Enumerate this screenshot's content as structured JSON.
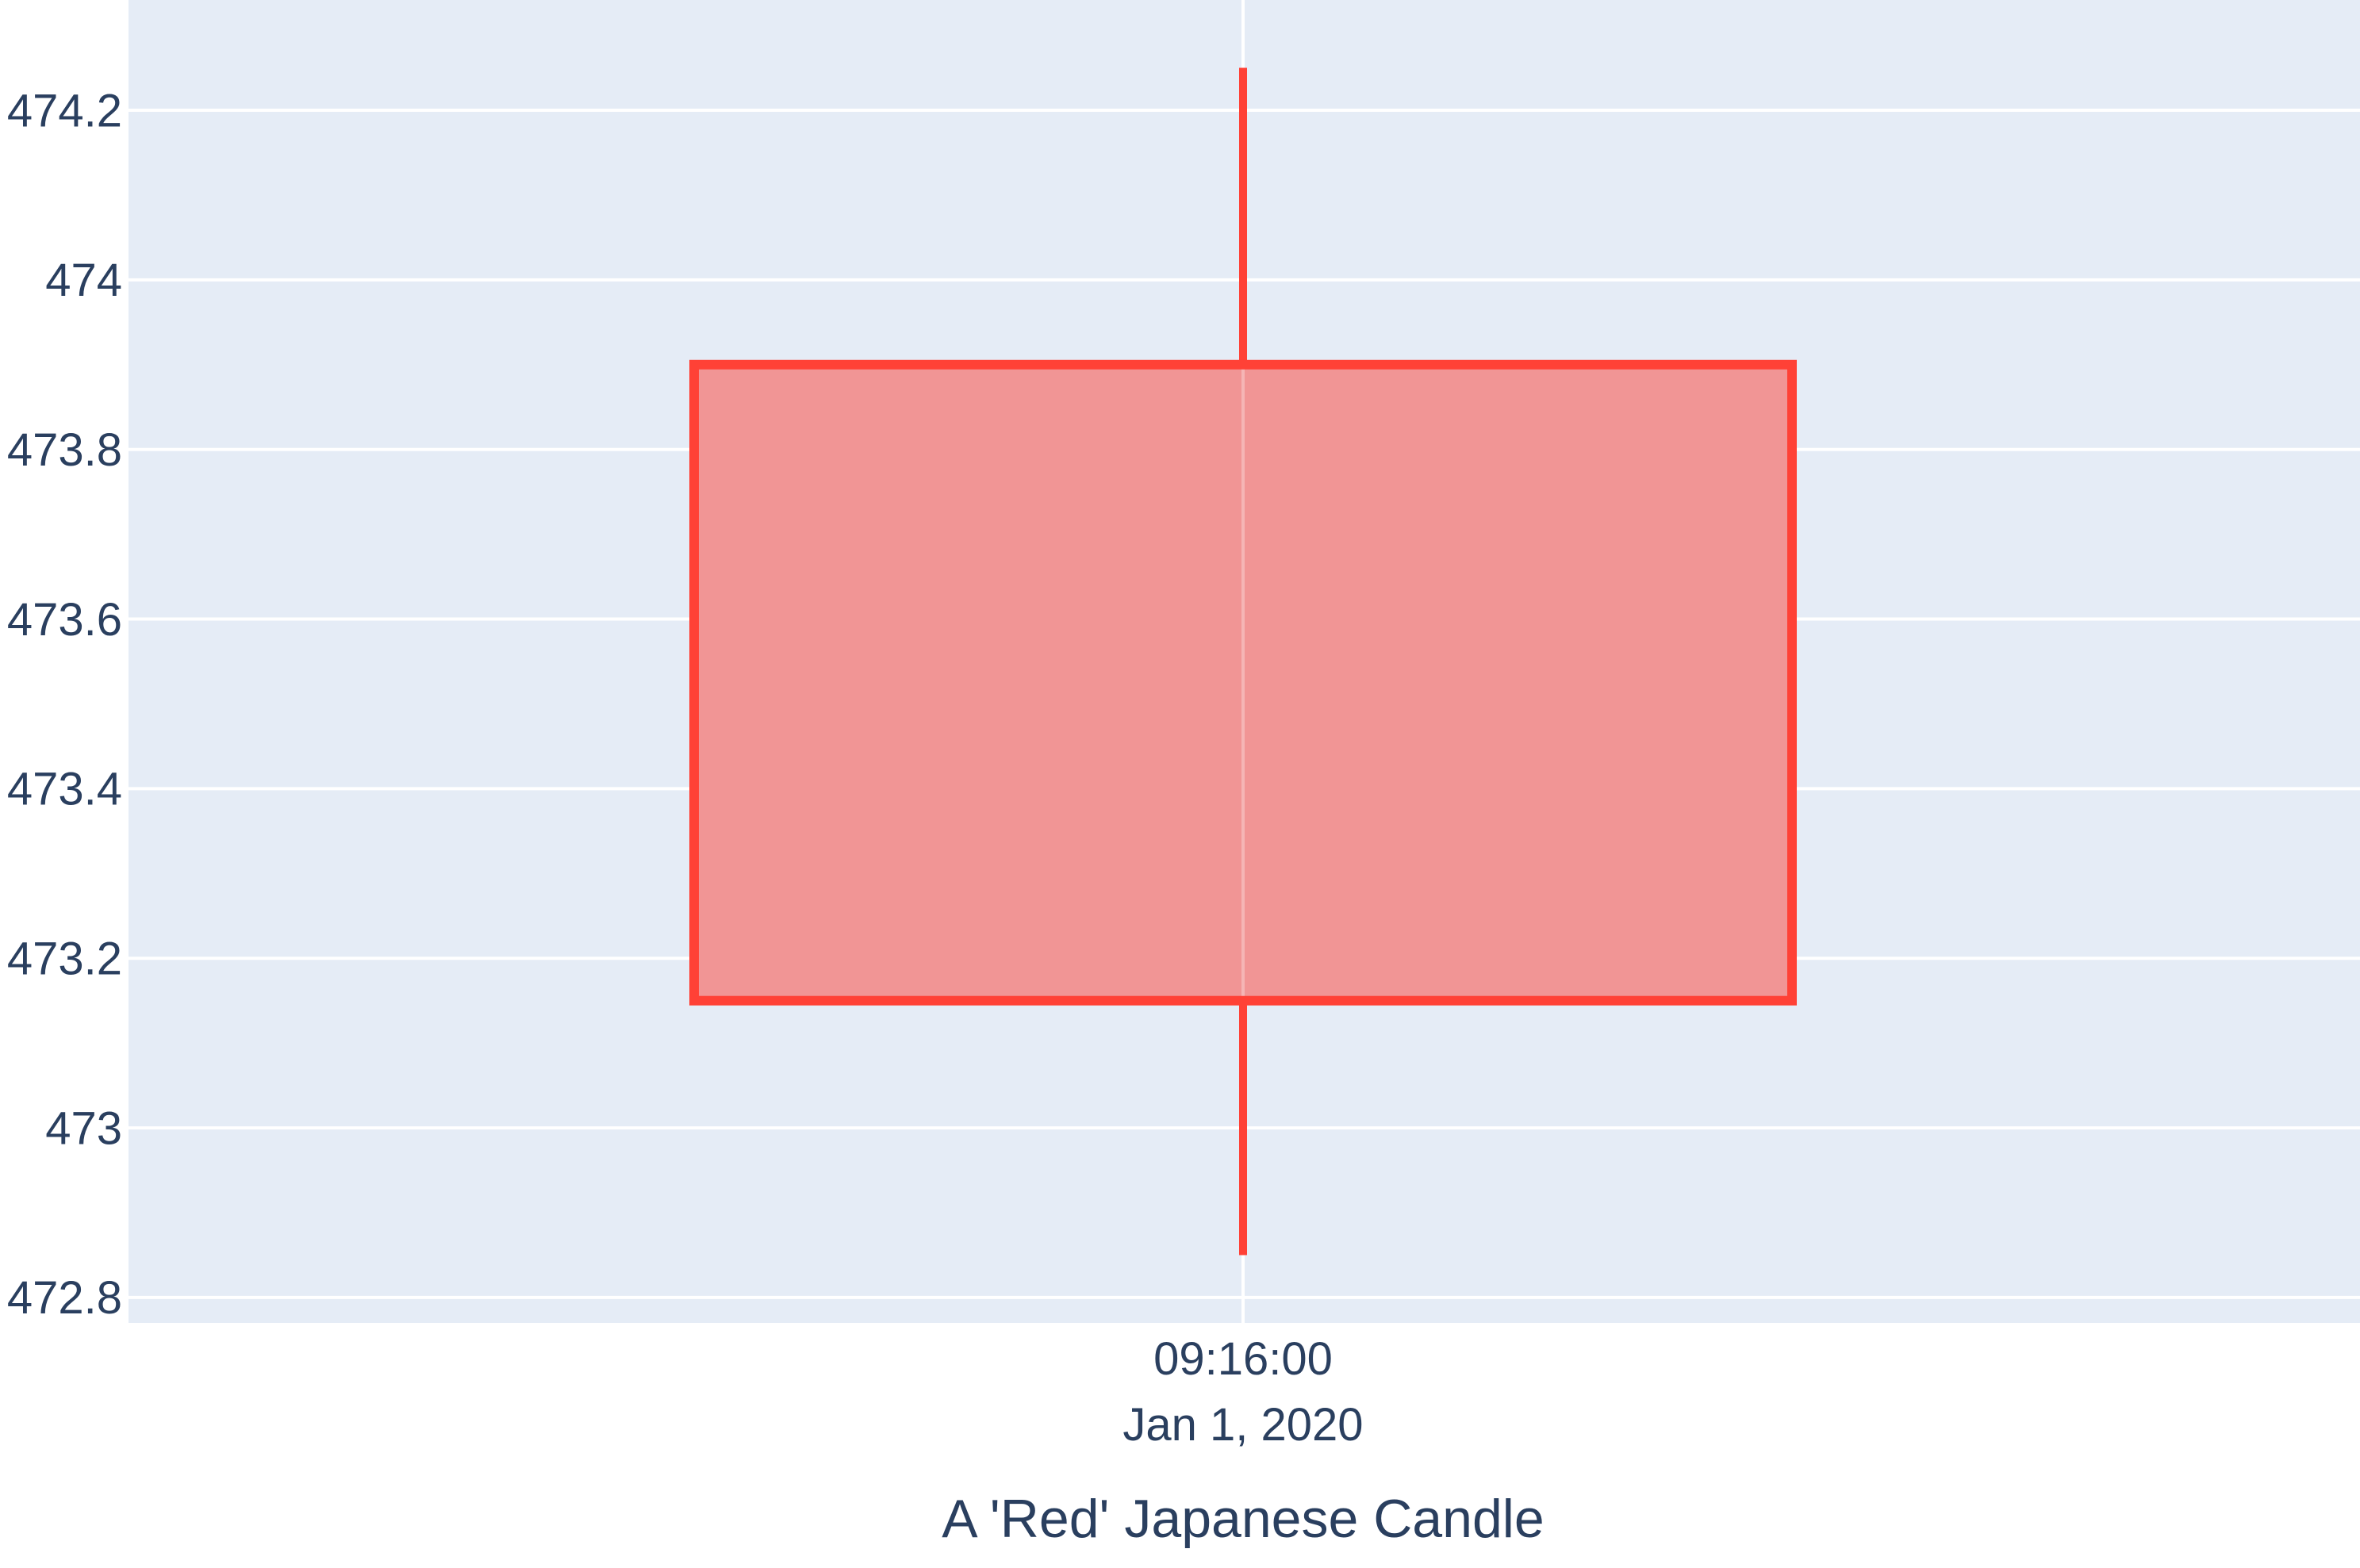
{
  "chart_data": {
    "type": "candlestick",
    "x": [
      "2020-01-01 09:16:00"
    ],
    "x_tick_labels": [
      [
        "09:16:00",
        "Jan 1, 2020"
      ]
    ],
    "open": [
      473.9
    ],
    "high": [
      474.25
    ],
    "low": [
      472.85
    ],
    "close": [
      473.15
    ],
    "xlabel": "A 'Red' Japanese Candle",
    "ylabel": "",
    "ylim": [
      472.77,
      474.33
    ],
    "y_ticks": [
      472.8,
      473,
      473.2,
      473.4,
      473.6,
      473.8,
      474,
      474.2
    ],
    "y_tick_labels": [
      "472.8",
      "473",
      "473.2",
      "473.4",
      "473.6",
      "473.8",
      "474",
      "474.2"
    ],
    "grid": true,
    "colors": {
      "plot_background": "#e5ecf6",
      "grid": "#ffffff",
      "decreasing_line": "#ff4136",
      "decreasing_fill": "#f19595",
      "text": "#2a3f5f"
    }
  }
}
